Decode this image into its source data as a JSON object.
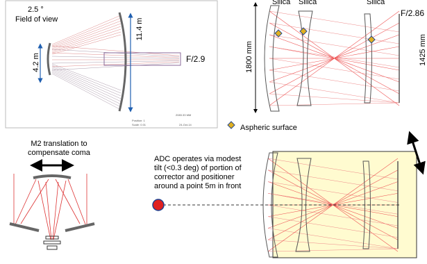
{
  "top_left": {
    "field_angle": "2.5 °",
    "field_label": "Field of view",
    "height_label": "11.4 m",
    "aperture_label": "4.2 m",
    "focal_ratio": "F/2.9",
    "scale_bar": "2083.33 MM",
    "footer": {
      "position": "Position: 1",
      "scale": "Scale: 0.01",
      "date": "24-Oct-14"
    }
  },
  "corrector": {
    "materials": [
      "Silica",
      "Silica",
      "Silica"
    ],
    "focal_ratio": "F/2.86",
    "height_label": "1800 mm",
    "focal_plane_label": "1425 mm",
    "legend": "Aspheric surface"
  },
  "m2": {
    "label_lines": [
      "M2 translation to",
      "compensate coma"
    ]
  },
  "adc": {
    "description_lines": [
      "ADC operates via modest",
      "tilt (<0.3 deg) of portion of",
      "corrector and positioner",
      "around a point 5m in front"
    ]
  }
}
